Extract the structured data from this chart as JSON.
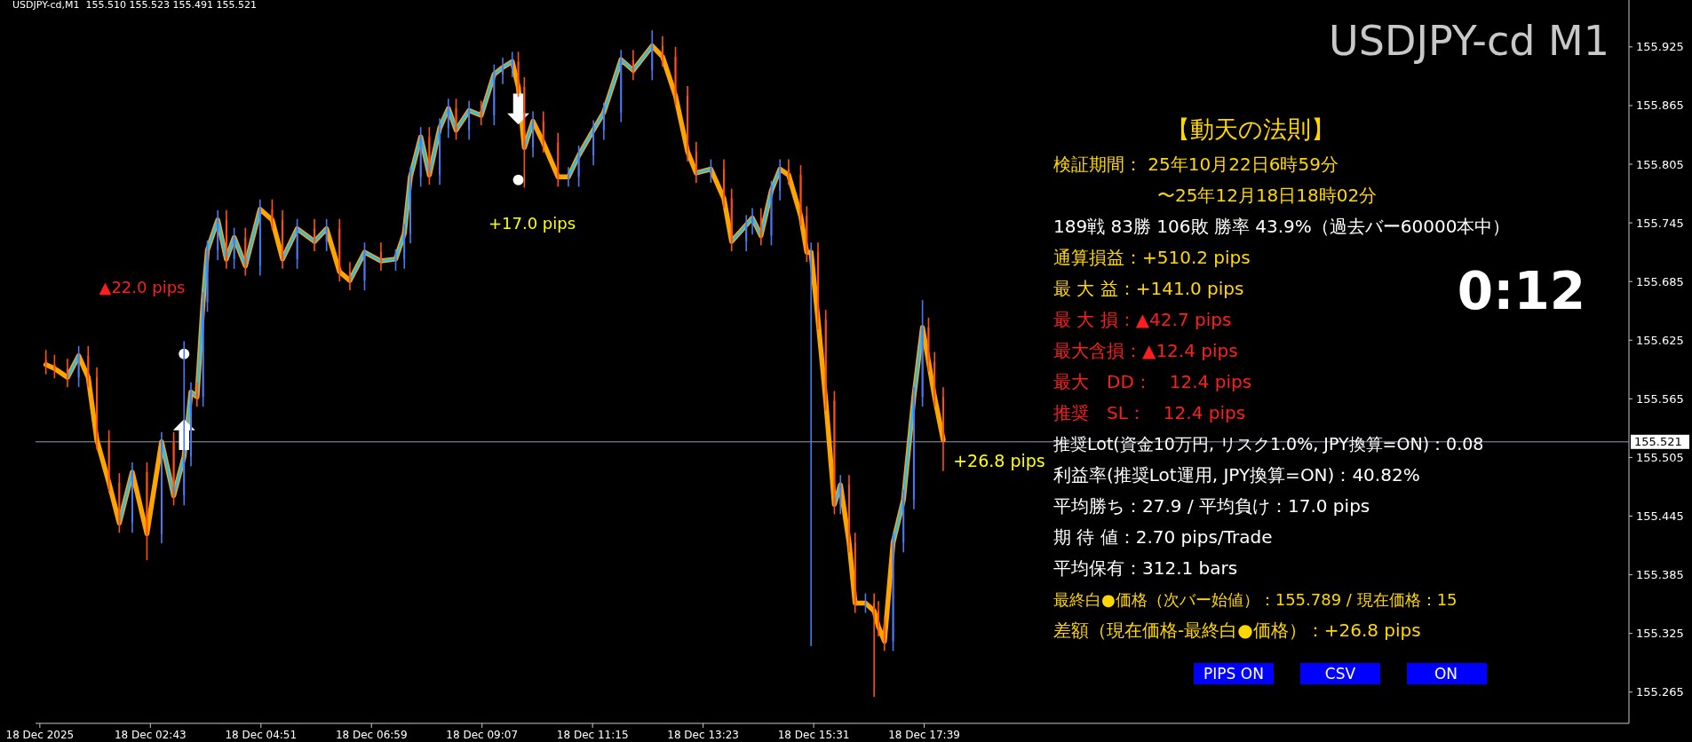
{
  "chart_data": {
    "type": "candlestick",
    "title": "USDJPY-cd M1",
    "subtitle": "USDJPY-cd,M1  155.510 155.523 155.491 155.521",
    "x": [
      "2025-12-18T00:42",
      "2025-12-18T00:52",
      "2025-12-18T01:07",
      "2025-12-18T01:20",
      "2025-12-18T01:31",
      "2025-12-18T01:41",
      "2025-12-18T01:55",
      "2025-12-18T02:07",
      "2025-12-18T02:22",
      "2025-12-18T02:39",
      "2025-12-18T02:56",
      "2025-12-18T03:10",
      "2025-12-18T03:22",
      "2025-12-18T03:30",
      "2025-12-18T03:37",
      "2025-12-18T03:44",
      "2025-12-18T03:49",
      "2025-12-18T04:01",
      "2025-12-18T04:11",
      "2025-12-18T04:20",
      "2025-12-18T04:33",
      "2025-12-18T04:50",
      "2025-12-18T05:04",
      "2025-12-18T05:16",
      "2025-12-18T05:33",
      "2025-12-18T05:53",
      "2025-12-18T06:07",
      "2025-12-18T06:22",
      "2025-12-18T06:34",
      "2025-12-18T06:51",
      "2025-12-18T07:10",
      "2025-12-18T07:27",
      "2025-12-18T07:37",
      "2025-12-18T07:44",
      "2025-12-18T07:56",
      "2025-12-18T08:06",
      "2025-12-18T08:18",
      "2025-12-18T08:28",
      "2025-12-18T08:37",
      "2025-12-18T08:52",
      "2025-12-18T09:06",
      "2025-12-18T09:21",
      "2025-12-18T09:31",
      "2025-12-18T09:42",
      "2025-12-18T09:49",
      "2025-12-18T09:56",
      "2025-12-18T10:06",
      "2025-12-18T10:18",
      "2025-12-18T10:35",
      "2025-12-18T10:47",
      "2025-12-18T10:59",
      "2025-12-18T11:16",
      "2025-12-18T11:28",
      "2025-12-18T11:48",
      "2025-12-18T12:02",
      "2025-12-18T12:24",
      "2025-12-18T12:36",
      "2025-12-18T12:51",
      "2025-12-18T13:05",
      "2025-12-18T13:15",
      "2025-12-18T13:32",
      "2025-12-18T13:47",
      "2025-12-18T13:56",
      "2025-12-18T14:13",
      "2025-12-18T14:20",
      "2025-12-18T14:30",
      "2025-12-18T14:42",
      "2025-12-18T14:52",
      "2025-12-18T15:02",
      "2025-12-18T15:16",
      "2025-12-18T15:23",
      "2025-12-18T15:28",
      "2025-12-18T15:36",
      "2025-12-18T15:45",
      "2025-12-18T15:55",
      "2025-12-18T16:02",
      "2025-12-18T16:12",
      "2025-12-18T16:19",
      "2025-12-18T16:31",
      "2025-12-18T16:41",
      "2025-12-18T16:46",
      "2025-12-18T16:53",
      "2025-12-18T17:03",
      "2025-12-18T17:15",
      "2025-12-18T17:27",
      "2025-12-18T17:37",
      "2025-12-18T17:44",
      "2025-12-18T17:51",
      "2025-12-18T18:01"
    ],
    "ohlc": [
      [
        155.605,
        155.615,
        155.59,
        155.6
      ],
      [
        155.6,
        155.61,
        155.586,
        155.596
      ],
      [
        155.596,
        155.606,
        155.577,
        155.587
      ],
      [
        155.587,
        155.619,
        155.577,
        155.609
      ],
      [
        155.609,
        155.619,
        155.577,
        155.587
      ],
      [
        155.587,
        155.597,
        155.513,
        155.523
      ],
      [
        155.523,
        155.533,
        155.469,
        155.479
      ],
      [
        155.479,
        155.489,
        155.428,
        155.438
      ],
      [
        155.438,
        155.5,
        155.428,
        155.49
      ],
      [
        155.49,
        155.5,
        155.4,
        155.427
      ],
      [
        155.427,
        155.531,
        155.417,
        155.521
      ],
      [
        155.521,
        155.531,
        155.456,
        155.466
      ],
      [
        155.466,
        155.624,
        155.456,
        155.506
      ],
      [
        155.506,
        155.582,
        155.496,
        155.572
      ],
      [
        155.572,
        155.582,
        155.557,
        155.567
      ],
      [
        155.567,
        155.674,
        155.557,
        155.664
      ],
      [
        155.664,
        155.727,
        155.654,
        155.717
      ],
      [
        155.717,
        155.758,
        155.707,
        155.748
      ],
      [
        155.748,
        155.758,
        155.698,
        155.708
      ],
      [
        155.708,
        155.74,
        155.698,
        155.73
      ],
      [
        155.73,
        155.74,
        155.691,
        155.701
      ],
      [
        155.701,
        155.769,
        155.691,
        155.759
      ],
      [
        155.759,
        155.769,
        155.738,
        155.748
      ],
      [
        155.748,
        155.758,
        155.698,
        155.708
      ],
      [
        155.708,
        155.749,
        155.698,
        155.739
      ],
      [
        155.739,
        155.749,
        155.716,
        155.726
      ],
      [
        155.726,
        155.749,
        155.716,
        155.739
      ],
      [
        155.739,
        155.749,
        155.685,
        155.695
      ],
      [
        155.695,
        155.705,
        155.676,
        155.686
      ],
      [
        155.686,
        155.725,
        155.676,
        155.715
      ],
      [
        155.715,
        155.725,
        155.696,
        155.706
      ],
      [
        155.706,
        155.718,
        155.696,
        155.708
      ],
      [
        155.708,
        155.744,
        155.698,
        155.734
      ],
      [
        155.734,
        155.802,
        155.724,
        155.792
      ],
      [
        155.792,
        155.843,
        155.782,
        155.833
      ],
      [
        155.833,
        155.843,
        155.784,
        155.794
      ],
      [
        155.794,
        155.852,
        155.784,
        155.842
      ],
      [
        155.842,
        155.872,
        155.832,
        155.862
      ],
      [
        155.862,
        155.872,
        155.83,
        155.84
      ],
      [
        155.84,
        155.87,
        155.83,
        155.86
      ],
      [
        155.86,
        155.87,
        155.845,
        155.855
      ],
      [
        155.855,
        155.907,
        155.845,
        155.897
      ],
      [
        155.897,
        155.914,
        155.887,
        155.904
      ],
      [
        155.904,
        155.92,
        155.894,
        155.91
      ],
      [
        155.91,
        155.92,
        155.874,
        155.884
      ],
      [
        155.884,
        155.894,
        155.781,
        155.822
      ],
      [
        155.822,
        155.859,
        155.812,
        155.849
      ],
      [
        155.849,
        155.859,
        155.817,
        155.827
      ],
      [
        155.827,
        155.837,
        155.782,
        155.792
      ],
      [
        155.792,
        155.802,
        155.782,
        155.792
      ],
      [
        155.792,
        155.824,
        155.782,
        155.814
      ],
      [
        155.814,
        155.85,
        155.804,
        155.84
      ],
      [
        155.84,
        155.868,
        155.83,
        155.858
      ],
      [
        155.858,
        155.922,
        155.848,
        155.912
      ],
      [
        155.912,
        155.922,
        155.891,
        155.901
      ],
      [
        155.901,
        155.942,
        155.891,
        155.926
      ],
      [
        155.926,
        155.936,
        155.905,
        155.915
      ],
      [
        155.915,
        155.925,
        155.865,
        155.875
      ],
      [
        155.875,
        155.885,
        155.808,
        155.818
      ],
      [
        155.818,
        155.828,
        155.786,
        155.796
      ],
      [
        155.796,
        155.81,
        155.786,
        155.8
      ],
      [
        155.8,
        155.81,
        155.76,
        155.77
      ],
      [
        155.77,
        155.78,
        155.716,
        155.726
      ],
      [
        155.726,
        155.753,
        155.716,
        155.743
      ],
      [
        155.743,
        155.76,
        155.733,
        155.75
      ],
      [
        155.75,
        155.76,
        155.722,
        155.732
      ],
      [
        155.732,
        155.788,
        155.722,
        155.778
      ],
      [
        155.778,
        155.81,
        155.768,
        155.8
      ],
      [
        155.8,
        155.81,
        155.784,
        155.794
      ],
      [
        155.794,
        155.804,
        155.742,
        155.752
      ],
      [
        155.752,
        155.762,
        155.705,
        155.715
      ],
      [
        155.715,
        155.725,
        155.312,
        155.715
      ],
      [
        155.715,
        155.725,
        155.636,
        155.646
      ],
      [
        155.646,
        155.656,
        155.553,
        155.563
      ],
      [
        155.563,
        155.573,
        155.447,
        155.457
      ],
      [
        155.457,
        155.487,
        155.447,
        155.477
      ],
      [
        155.477,
        155.487,
        155.408,
        155.418
      ],
      [
        155.418,
        155.428,
        155.346,
        155.356
      ],
      [
        155.356,
        155.366,
        155.346,
        155.356
      ],
      [
        155.356,
        155.366,
        155.26,
        155.348
      ],
      [
        155.348,
        155.358,
        155.322,
        155.332
      ],
      [
        155.332,
        155.342,
        155.307,
        155.317
      ],
      [
        155.317,
        155.428,
        155.307,
        155.418
      ],
      [
        155.418,
        155.472,
        155.408,
        155.462
      ],
      [
        155.462,
        155.577,
        155.452,
        155.567
      ],
      [
        155.567,
        155.666,
        155.557,
        155.638
      ],
      [
        155.638,
        155.648,
        155.593,
        155.603
      ],
      [
        155.603,
        155.613,
        155.557,
        155.567
      ],
      [
        155.567,
        155.577,
        155.491,
        155.523
      ]
    ],
    "series": [
      {
        "type": "line",
        "color": "#ffa500",
        "values": [
          155.6,
          155.596,
          155.587,
          155.609,
          155.587,
          155.523,
          155.479,
          155.438,
          155.49,
          155.427,
          155.521,
          155.466,
          155.506,
          155.572,
          155.567,
          155.664,
          155.717,
          155.748,
          155.708,
          155.73,
          155.701,
          155.759,
          155.748,
          155.708,
          155.739,
          155.726,
          155.739,
          155.695,
          155.686,
          155.715,
          155.706,
          155.708,
          155.734,
          155.792,
          155.833,
          155.794,
          155.842,
          155.862,
          155.84,
          155.86,
          155.855,
          155.897,
          155.904,
          155.91,
          155.884,
          155.822,
          155.849,
          155.827,
          155.792,
          155.792,
          155.814,
          155.84,
          155.858,
          155.912,
          155.901,
          155.926,
          155.915,
          155.875,
          155.818,
          155.796,
          155.8,
          155.77,
          155.726,
          155.743,
          155.75,
          155.732,
          155.778,
          155.8,
          155.794,
          155.752,
          155.715,
          155.715,
          155.646,
          155.563,
          155.457,
          155.477,
          155.418,
          155.356,
          155.356,
          155.348,
          155.332,
          155.317,
          155.418,
          155.462,
          155.567,
          155.638,
          155.603,
          155.567,
          155.523
        ]
      },
      {
        "type": "line",
        "color": "#1ebeff",
        "values": [
          null,
          null,
          155.587,
          155.609,
          null,
          null,
          null,
          155.438,
          155.49,
          null,
          155.521,
          155.466,
          155.506,
          155.572,
          155.567,
          155.664,
          155.717,
          155.748,
          155.708,
          155.73,
          155.701,
          155.759,
          null,
          155.708,
          155.739,
          155.726,
          155.739,
          null,
          155.686,
          155.715,
          155.706,
          155.708,
          155.734,
          155.792,
          155.833,
          155.794,
          155.842,
          155.862,
          155.84,
          155.86,
          155.855,
          155.897,
          155.904,
          155.91,
          null,
          155.822,
          155.849,
          null,
          null,
          155.792,
          155.814,
          155.84,
          155.858,
          155.912,
          155.901,
          155.926,
          null,
          null,
          null,
          155.796,
          155.8,
          null,
          155.726,
          155.743,
          155.75,
          155.732,
          155.778,
          155.8,
          null,
          null,
          null,
          null,
          null,
          null,
          155.457,
          155.477,
          null,
          null,
          null,
          null,
          null,
          null,
          155.418,
          155.462,
          155.567,
          155.638,
          null,
          null,
          null
        ]
      },
      {
        "type": "scatter",
        "color": "#ffffff",
        "marker": "circle",
        "x": [
          "2025-12-18T03:22",
          "2025-12-18T09:49"
        ],
        "values": [
          155.611,
          155.789
        ]
      }
    ],
    "xlim": [
      "2025-12-18T00:30",
      "2025-12-19T07:15"
    ],
    "ylim": [
      155.233,
      155.973
    ],
    "xticks": [
      {
        "value": "2025-12-18T00:35",
        "label": "18 Dec 2025"
      },
      {
        "value": "2025-12-18T02:43",
        "label": "18 Dec 02:43"
      },
      {
        "value": "2025-12-18T04:51",
        "label": "18 Dec 04:51"
      },
      {
        "value": "2025-12-18T06:59",
        "label": "18 Dec 06:59"
      },
      {
        "value": "2025-12-18T09:07",
        "label": "18 Dec 09:07"
      },
      {
        "value": "2025-12-18T11:15",
        "label": "18 Dec 11:15"
      },
      {
        "value": "2025-12-18T13:23",
        "label": "18 Dec 13:23"
      },
      {
        "value": "2025-12-18T15:31",
        "label": "18 Dec 15:31"
      },
      {
        "value": "2025-12-18T17:39",
        "label": "18 Dec 17:39"
      }
    ],
    "yticks": [
      {
        "value": 155.265,
        "label": "155.265"
      },
      {
        "value": 155.325,
        "label": "155.325"
      },
      {
        "value": 155.385,
        "label": "155.385"
      },
      {
        "value": 155.445,
        "label": "155.445"
      },
      {
        "value": 155.505,
        "label": "155.505"
      },
      {
        "value": 155.565,
        "label": "155.565"
      },
      {
        "value": 155.625,
        "label": "155.625"
      },
      {
        "value": 155.685,
        "label": "155.685"
      },
      {
        "value": 155.745,
        "label": "155.745"
      },
      {
        "value": 155.805,
        "label": "155.805"
      },
      {
        "value": 155.865,
        "label": "155.865"
      },
      {
        "value": 155.925,
        "label": "155.925"
      }
    ],
    "ref_lines": [
      {
        "axis": "y",
        "value": 155.521,
        "label": "155.521",
        "color": "#8c9eb4"
      }
    ],
    "grid": false,
    "annotations": [
      "▲22.0 pips",
      "+17.0 pips",
      "+26.8 pips",
      {
        "text": "⬆",
        "x": "2025-12-18T03:22",
        "y": 155.528
      },
      {
        "text": "⬇",
        "x": "2025-12-18T09:49",
        "y": 155.862
      },
      "【動天の法則】",
      "検証期間： 25年10月22日6時59分",
      "〜25年12月18日18時02分",
      "189戦 83勝 106敗 勝率 43.9%（過去バー60000本中）",
      "通算損益：+510.2 pips",
      "最 大 益：+141.0 pips",
      "最 大 損：▲42.7 pips",
      "最大含損：▲12.4 pips",
      "最大　DD：　12.4 pips",
      "推奨　SL：　12.4 pips",
      "推奨Lot(資金10万円, リスク1.0%, JPY換算=ON)：0.08",
      "利益率(推奨Lot運用, JPY換算=ON)：40.82%",
      "平均勝ち：27.9 / 平均負け：17.0 pips",
      "期 待 値：2.70 pips/Trade",
      "平均保有：312.1 bars",
      "最終白●価格（次バー始値）：155.789 / 現在価格：15",
      "差額（現在価格-最終白●価格）：+26.8 pips",
      "0:12",
      "PIPS ON",
      "CSV",
      "ON"
    ]
  }
}
